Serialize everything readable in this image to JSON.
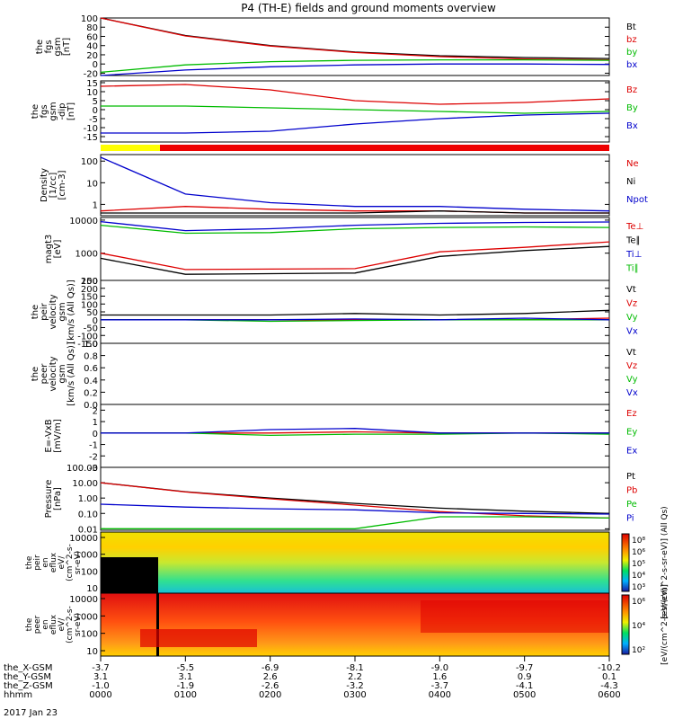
{
  "chart_data": {
    "type": "line",
    "title": "P4 (TH-E) fields and ground moments overview",
    "date": "2017 Jan 23",
    "x": {
      "row_labels": [
        "the_X-GSM",
        "the_Y-GSM",
        "the_Z-GSM",
        "hhmm"
      ],
      "ticks": [
        {
          "x": "-3.7",
          "y": "3.1",
          "z": "-1.0",
          "t": "0000"
        },
        {
          "x": "-5.5",
          "y": "3.1",
          "z": "-1.9",
          "t": "0100"
        },
        {
          "x": "-6.9",
          "y": "2.6",
          "z": "-2.6",
          "t": "0200"
        },
        {
          "x": "-8.1",
          "y": "2.2",
          "z": "-3.2",
          "t": "0300"
        },
        {
          "x": "-9.0",
          "y": "1.6",
          "z": "-3.7",
          "t": "0400"
        },
        {
          "x": "-9.7",
          "y": "0.9",
          "z": "-4.1",
          "t": "0500"
        },
        {
          "x": "-10.2",
          "y": "0.1",
          "z": "-4.3",
          "t": "0600"
        }
      ]
    },
    "panels": [
      {
        "ylabel": [
          "the",
          "fgs",
          "gsm",
          "[nT]"
        ],
        "ticks": [
          "100",
          "80",
          "60",
          "40",
          "20",
          "0",
          "-20"
        ],
        "ylim": [
          -25,
          100
        ],
        "series": [
          {
            "name": "Bt",
            "color": "#000000",
            "values": [
              108,
              62,
              40,
              26,
              18,
              14,
              12
            ]
          },
          {
            "name": "bz",
            "color": "#dd0000",
            "values": [
              107,
              61,
              39,
              25,
              16,
              11,
              9
            ]
          },
          {
            "name": "by",
            "color": "#00bb00",
            "values": [
              -18,
              -2,
              5,
              8,
              9,
              9,
              8
            ]
          },
          {
            "name": "bx",
            "color": "#0000cc",
            "values": [
              -32,
              -13,
              -6,
              -2,
              0,
              0,
              -1
            ]
          }
        ]
      },
      {
        "ylabel": [
          "the",
          "fgs",
          "gsm",
          "-dip",
          "[nT]"
        ],
        "ticks": [
          "15",
          "10",
          "5",
          "0",
          "-5",
          "-10",
          "-15"
        ],
        "ylim": [
          -18,
          16
        ],
        "series": [
          {
            "name": "Bz",
            "color": "#dd0000",
            "values": [
              13,
              14,
              11,
              5,
              3,
              4,
              6
            ]
          },
          {
            "name": "By",
            "color": "#00bb00",
            "values": [
              2,
              2,
              1,
              0,
              -1,
              -2,
              -1
            ]
          },
          {
            "name": "Bx",
            "color": "#0000cc",
            "values": [
              -13,
              -13,
              -12,
              -8,
              -5,
              -3,
              -2
            ]
          }
        ]
      },
      {
        "ylabel": [
          "Density",
          "[1/cc]",
          "[cm-3]"
        ],
        "ticks": [
          "100",
          "10",
          "1"
        ],
        "scale": "log",
        "ylim": [
          0.3,
          200
        ],
        "series": [
          {
            "name": "Ne",
            "color": "#dd0000",
            "values": [
              0.5,
              0.8,
              0.6,
              0.5,
              0.5,
              0.4,
              0.4
            ]
          },
          {
            "name": "Ni",
            "color": "#000000",
            "values": [
              0.4,
              0.4,
              0.4,
              0.4,
              0.5,
              0.4,
              0.4
            ]
          },
          {
            "name": "Npot",
            "color": "#0000cc",
            "values": [
              150,
              3,
              1.2,
              0.8,
              0.8,
              0.6,
              0.5
            ]
          }
        ]
      },
      {
        "ylabel": [
          "magt3",
          "[eV]"
        ],
        "ticks": [
          "10000",
          "1000",
          "100"
        ],
        "scale": "log",
        "ylim": [
          150,
          12000
        ],
        "series": [
          {
            "name": "Te⊥",
            "color": "#dd0000",
            "values": [
              1000,
              320,
              330,
              340,
              1100,
              1500,
              2200
            ]
          },
          {
            "name": "Te∥",
            "color": "#000000",
            "values": [
              700,
              230,
              240,
              250,
              800,
              1200,
              1600
            ]
          },
          {
            "name": "Ti⊥",
            "color": "#0000cc",
            "values": [
              9000,
              4800,
              5500,
              7000,
              8000,
              8500,
              8800
            ]
          },
          {
            "name": "Ti∥",
            "color": "#00bb00",
            "values": [
              7000,
              4000,
              4200,
              5500,
              6000,
              6200,
              6000
            ]
          }
        ]
      },
      {
        "ylabel": [
          "the",
          "peir",
          "velocity",
          "gsm",
          "[km/s (All Qs)]"
        ],
        "ticks": [
          "250",
          "200",
          "150",
          "100",
          "50",
          "0",
          "-50",
          "-100",
          "-150"
        ],
        "ylim": [
          -150,
          250
        ],
        "series": [
          {
            "name": "Vt",
            "color": "#000000",
            "values": [
              30,
              30,
              30,
              40,
              30,
              40,
              60
            ]
          },
          {
            "name": "Vz",
            "color": "#dd0000",
            "values": [
              0,
              0,
              0,
              0,
              0,
              0,
              10
            ]
          },
          {
            "name": "Vy",
            "color": "#00bb00",
            "values": [
              0,
              0,
              -10,
              -5,
              0,
              0,
              0
            ]
          },
          {
            "name": "Vx",
            "color": "#0000cc",
            "values": [
              0,
              0,
              0,
              5,
              0,
              10,
              0
            ]
          }
        ]
      },
      {
        "ylabel": [
          "the",
          "peer",
          "velocity",
          "gsm",
          "[km/s (All Qs)]"
        ],
        "ticks": [
          "1.0",
          "0.8",
          "0.6",
          "0.4",
          "0.2",
          "0.0"
        ],
        "ylim": [
          0,
          1
        ],
        "series": [
          {
            "name": "Vt",
            "color": "#000000",
            "values": []
          },
          {
            "name": "Vz",
            "color": "#dd0000",
            "values": []
          },
          {
            "name": "Vy",
            "color": "#00bb00",
            "values": []
          },
          {
            "name": "Vx",
            "color": "#0000cc",
            "values": []
          }
        ]
      },
      {
        "ylabel": [
          "E=-VxB",
          "[mV/m]"
        ],
        "ticks": [
          "2",
          "1",
          "0",
          "-1",
          "-2",
          "-3"
        ],
        "ylim": [
          -3,
          2.5
        ],
        "series": [
          {
            "name": "Ez",
            "color": "#dd0000",
            "values": [
              0,
              0,
              0,
              0.1,
              0,
              0,
              0
            ]
          },
          {
            "name": "Ey",
            "color": "#00bb00",
            "values": [
              0,
              0,
              -0.2,
              -0.1,
              -0.1,
              0,
              -0.1
            ]
          },
          {
            "name": "Ex",
            "color": "#0000cc",
            "values": [
              0,
              0,
              0.3,
              0.4,
              0,
              0,
              0
            ]
          }
        ]
      },
      {
        "ylabel": [
          "Pressure",
          "[nPa]"
        ],
        "ticks": [
          "100.00",
          "10.00",
          "1.00",
          "0.10",
          "0.01"
        ],
        "scale": "log",
        "ylim": [
          0.008,
          100
        ],
        "series": [
          {
            "name": "Pt",
            "color": "#000000",
            "values": [
              10,
              2.6,
              1.0,
              0.45,
              0.22,
              0.14,
              0.1
            ]
          },
          {
            "name": "Pb",
            "color": "#dd0000",
            "values": [
              10,
              2.5,
              0.9,
              0.35,
              0.13,
              0.07,
              0.05
            ]
          },
          {
            "name": "Pe",
            "color": "#00bb00",
            "values": [
              0.01,
              0.01,
              0.01,
              0.01,
              0.06,
              0.06,
              0.05
            ]
          },
          {
            "name": "Pi",
            "color": "#0000cc",
            "values": [
              0.4,
              0.26,
              0.2,
              0.17,
              0.11,
              0.1,
              0.09
            ]
          }
        ]
      },
      {
        "type": "heatmap",
        "ylabel": [
          "the",
          "peir",
          "en",
          "eflux",
          "eV/",
          "(cm^2-s-",
          "sr-eV)"
        ],
        "ticks": [
          "10000",
          "1000",
          "100",
          "10"
        ]
      },
      {
        "type": "heatmap",
        "ylabel": [
          "the",
          "peer",
          "en",
          "eflux",
          "eV/",
          "(cm^2-s-",
          "sr-eV)"
        ],
        "ticks": [
          "10000",
          "1000",
          "100",
          "10"
        ]
      }
    ],
    "colorbars": [
      {
        "label": "[eV/(cm^2-s-sr-eV)] (All Qs)",
        "ticks": [
          "10⁸",
          "10⁶",
          "10⁵",
          "10⁴",
          "10³"
        ]
      },
      {
        "label": "[eV/(cm^2-s-sr-eV)]",
        "ticks": [
          "10⁶",
          "10⁴",
          "10²"
        ]
      }
    ]
  }
}
